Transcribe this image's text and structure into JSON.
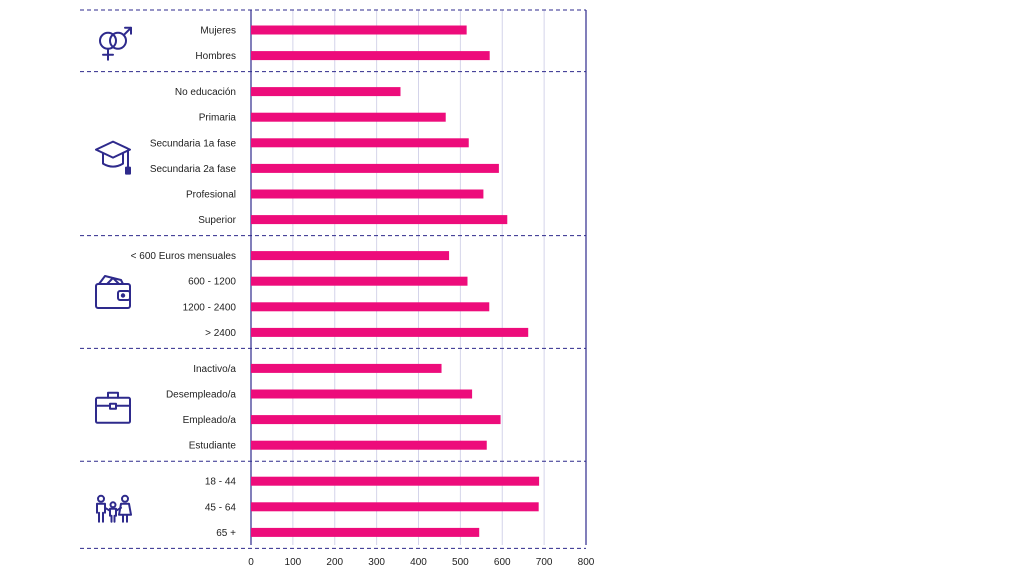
{
  "chart_data": {
    "type": "bar",
    "orientation": "horizontal",
    "title": "",
    "xlabel": "",
    "ylabel": "",
    "xlim": [
      0,
      800
    ],
    "x_ticks": [
      "0",
      "100",
      "200",
      "300",
      "400",
      "500",
      "600",
      "700",
      "800"
    ],
    "grid": "vertical",
    "bar_color": "#ed0c7b",
    "accent_color": "#2e2a8c",
    "groups": [
      {
        "icon": "gender-icon",
        "categories": [
          "Mujeres",
          "Hombres"
        ],
        "values": [
          515,
          570
        ]
      },
      {
        "icon": "graduation-cap-icon",
        "categories": [
          "No educación",
          "Primaria",
          "Secundaria 1a fase",
          "Secundaria 2a fase",
          "Profesional",
          "Superior"
        ],
        "values": [
          357,
          465,
          520,
          592,
          555,
          612
        ]
      },
      {
        "icon": "wallet-icon",
        "categories": [
          "< 600 Euros mensuales",
          "600 - 1200",
          "1200 - 2400",
          "> 2400"
        ],
        "values": [
          473,
          517,
          569,
          662
        ]
      },
      {
        "icon": "briefcase-icon",
        "categories": [
          "Inactivo/a",
          "Desempleado/a",
          "Empleado/a",
          "Estudiante"
        ],
        "values": [
          455,
          528,
          596,
          563
        ]
      },
      {
        "icon": "family-icon",
        "categories": [
          "18 - 44",
          "45 - 64",
          "65 +"
        ],
        "values": [
          688,
          687,
          545
        ]
      }
    ]
  }
}
